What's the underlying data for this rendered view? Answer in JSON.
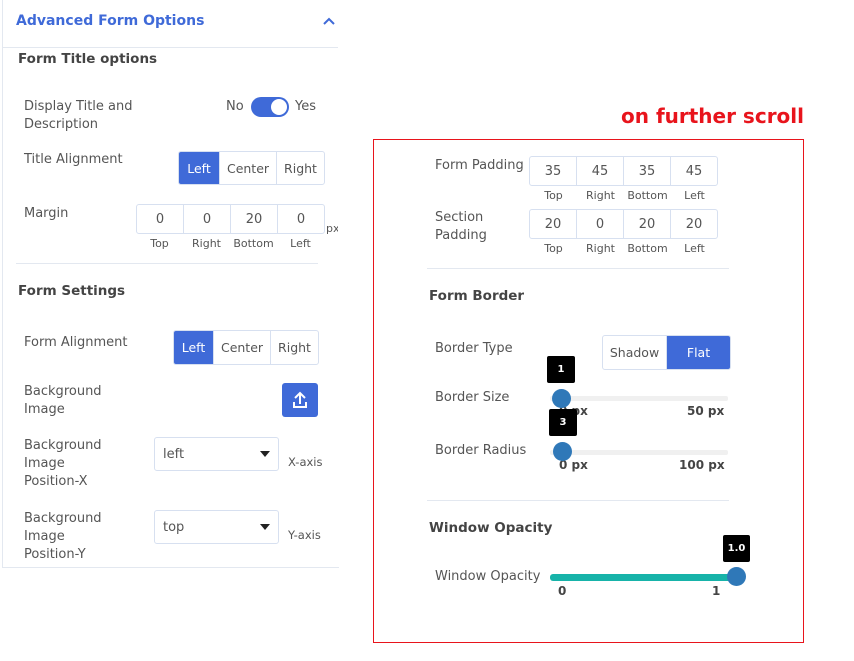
{
  "panel": {
    "title": "Advanced Form Options",
    "form_title_options": {
      "heading": "Form Title options",
      "display_title": {
        "label": "Display Title and Description",
        "no": "No",
        "yes": "Yes",
        "value": true
      },
      "title_alignment": {
        "label": "Title Alignment",
        "options": [
          "Left",
          "Center",
          "Right"
        ],
        "selected": "Left"
      },
      "margin": {
        "label": "Margin",
        "values": [
          "0",
          "0",
          "20",
          "0"
        ],
        "sides": [
          "Top",
          "Right",
          "Bottom",
          "Left"
        ],
        "unit": "px"
      }
    },
    "form_settings": {
      "heading": "Form Settings",
      "form_alignment": {
        "label": "Form Alignment",
        "options": [
          "Left",
          "Center",
          "Right"
        ],
        "selected": "Left"
      },
      "background_image": {
        "label": "Background Image",
        "icon": "upload-icon"
      },
      "position_x": {
        "label": "Background Image Position-X",
        "value": "left",
        "axis": "X-axis"
      },
      "position_y": {
        "label": "Background Image Position-Y",
        "value": "top",
        "axis": "Y-axis"
      }
    }
  },
  "annotation": "on further scroll",
  "scrolled": {
    "form_padding": {
      "label": "Form Padding",
      "values": [
        "35",
        "45",
        "35",
        "45"
      ],
      "sides": [
        "Top",
        "Right",
        "Bottom",
        "Left"
      ]
    },
    "section_padding": {
      "label": "Section Padding",
      "values": [
        "20",
        "0",
        "20",
        "20"
      ],
      "sides": [
        "Top",
        "Right",
        "Bottom",
        "Left"
      ]
    },
    "form_border": {
      "heading": "Form Border",
      "border_type": {
        "label": "Border Type",
        "options": [
          "Shadow",
          "Flat"
        ],
        "selected": "Flat"
      },
      "border_size": {
        "label": "Border Size",
        "value": "1",
        "min": "0 px",
        "max": "50 px"
      },
      "border_radius": {
        "label": "Border Radius",
        "value": "3",
        "min": "0 px",
        "max": "100 px"
      }
    },
    "window_opacity": {
      "heading": "Window Opacity",
      "label": "Window Opacity",
      "value": "1.0",
      "min": "0",
      "max": "1"
    }
  },
  "colors": {
    "accent": "#3f6ad8",
    "annotation": "#e8141c",
    "slider_knob": "#2f78b8",
    "opacity_fill": "#17b3a9"
  }
}
